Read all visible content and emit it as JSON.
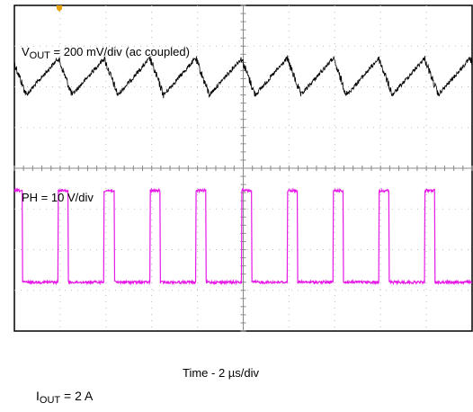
{
  "chart_data": {
    "type": "line",
    "title": "",
    "xlabel": "Time - 2 µs/div",
    "annotations": {
      "vout_prefix": "V",
      "vout_sub": "OUT",
      "vout_suffix": " = 200 mV/div (ac coupled)",
      "ph_label": "PH = 10 V/div",
      "iout_prefix": "I",
      "iout_sub": "OUT",
      "iout_suffix": " = 2 A"
    },
    "x_divisions": 10,
    "y_divisions": 8,
    "grid": true,
    "series": [
      {
        "name": "VOUT",
        "color": "#000000",
        "ripple_period_div": 1.0,
        "peak_times_div": [
          0.96,
          1.96,
          2.96,
          3.96,
          4.96,
          5.96,
          6.96,
          7.96,
          8.96,
          9.96
        ],
        "ripple_pp_div": 0.9,
        "center_div_from_top": 1.75
      },
      {
        "name": "PH",
        "color": "#e619e6",
        "period_div": 1.0,
        "pulse_width_div": 0.22,
        "rise_times_div": [
          -0.04,
          0.96,
          1.96,
          2.96,
          3.96,
          4.96,
          5.96,
          6.96,
          7.96,
          8.96
        ],
        "high_level_div_from_top": 4.55,
        "low_level_div_from_top": 6.8
      }
    ]
  }
}
